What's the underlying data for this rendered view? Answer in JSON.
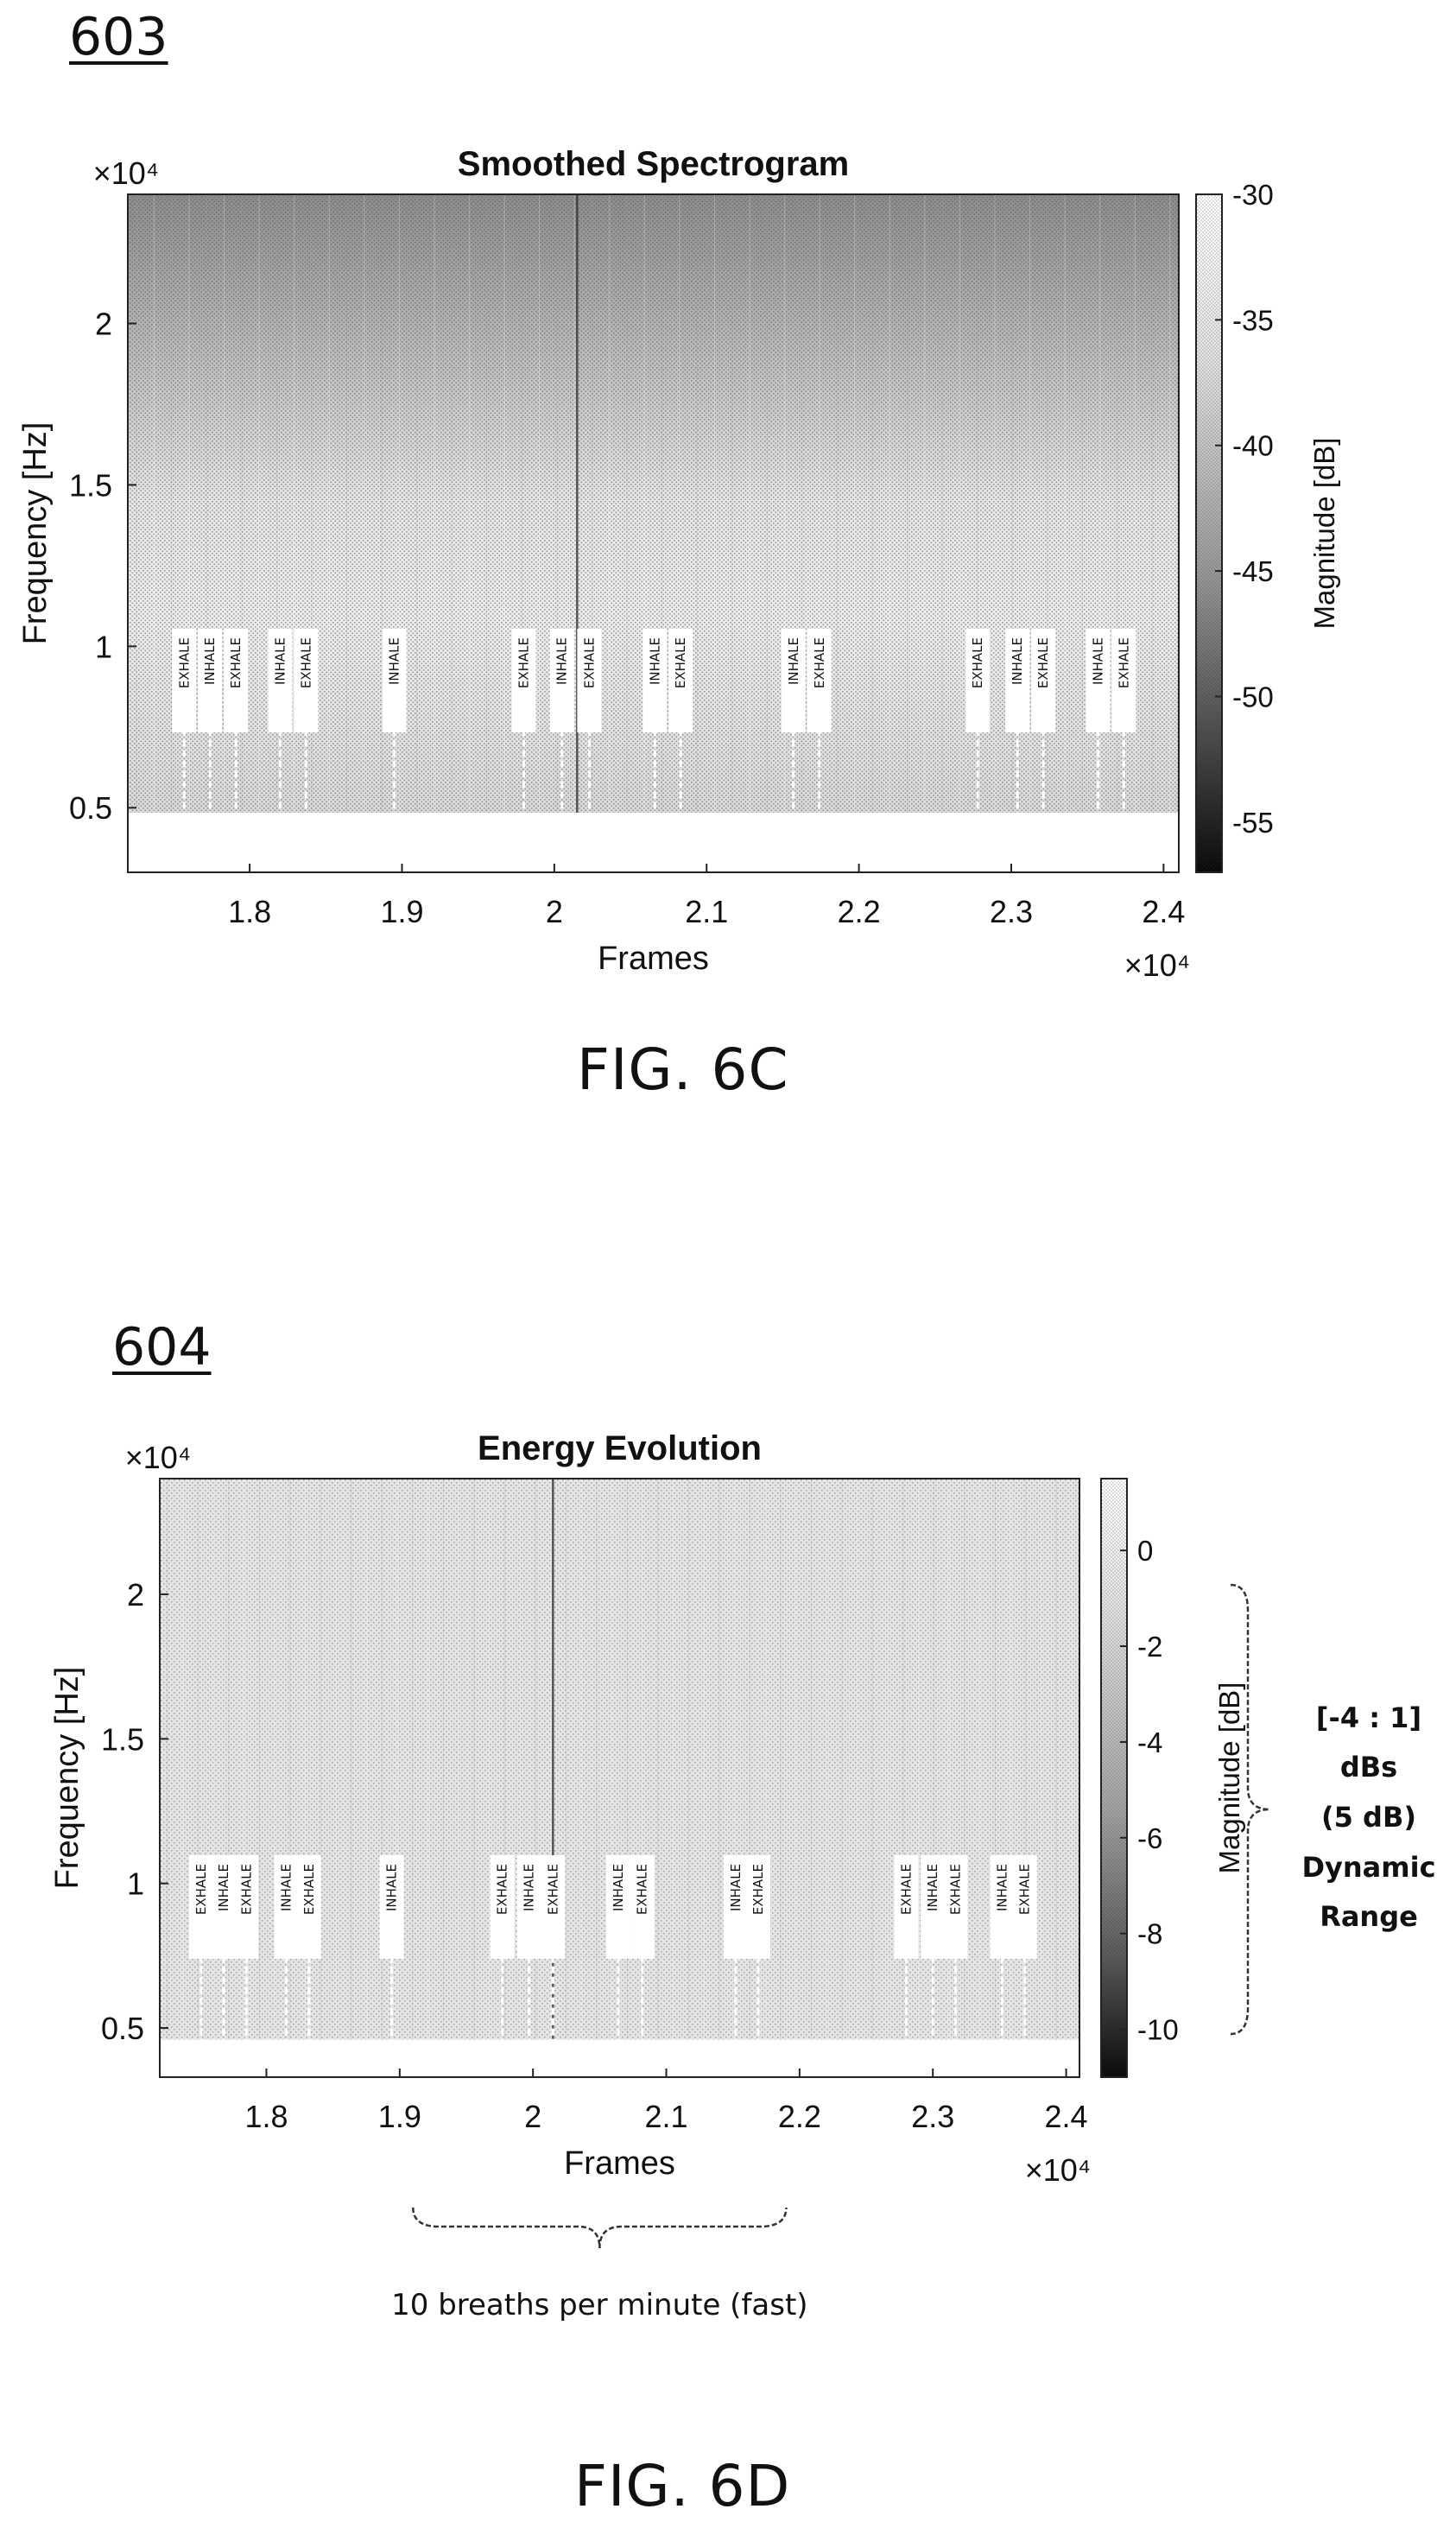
{
  "chart_data": [
    {
      "ref": "603",
      "type": "heatmap",
      "title": "Smoothed Spectrogram",
      "xlabel": "Frames",
      "ylabel": "Frequency [Hz]",
      "x_exponent": "×10⁴",
      "y_exponent": "×10⁴",
      "xlim": [
        1.72,
        2.41
      ],
      "ylim": [
        0.3,
        2.4
      ],
      "x_ticks": [
        1.8,
        1.9,
        2,
        2.1,
        2.2,
        2.3,
        2.4
      ],
      "y_ticks": [
        0.5,
        1,
        1.5,
        2
      ],
      "colorbar": {
        "label": "Magnitude [dB]",
        "range": [
          -57,
          -30
        ],
        "ticks": [
          -30,
          -35,
          -40,
          -45,
          -50,
          -55
        ]
      },
      "markers": [
        {
          "x": 1.757,
          "label": "EXHALE"
        },
        {
          "x": 1.774,
          "label": "INHALE"
        },
        {
          "x": 1.791,
          "label": "EXHALE"
        },
        {
          "x": 1.82,
          "label": "INHALE"
        },
        {
          "x": 1.837,
          "label": "EXHALE"
        },
        {
          "x": 1.895,
          "label": "INHALE"
        },
        {
          "x": 1.98,
          "label": "EXHALE"
        },
        {
          "x": 2.005,
          "label": "INHALE"
        },
        {
          "x": 2.023,
          "label": "EXHALE"
        },
        {
          "x": 2.066,
          "label": "INHALE"
        },
        {
          "x": 2.083,
          "label": "EXHALE"
        },
        {
          "x": 2.157,
          "label": "INHALE"
        },
        {
          "x": 2.174,
          "label": "EXHALE"
        },
        {
          "x": 2.278,
          "label": "EXHALE"
        },
        {
          "x": 2.304,
          "label": "INHALE"
        },
        {
          "x": 2.321,
          "label": "EXHALE"
        },
        {
          "x": 2.357,
          "label": "INHALE"
        },
        {
          "x": 2.374,
          "label": "EXHALE"
        }
      ],
      "caption": "FIG. 6C"
    },
    {
      "ref": "604",
      "type": "heatmap",
      "title": "Energy Evolution",
      "xlabel": "Frames",
      "ylabel": "Frequency [Hz]",
      "x_exponent": "×10⁴",
      "y_exponent": "×10⁴",
      "xlim": [
        1.72,
        2.41
      ],
      "ylim": [
        0.33,
        2.4
      ],
      "x_ticks": [
        1.8,
        1.9,
        2,
        2.1,
        2.2,
        2.3,
        2.4
      ],
      "y_ticks": [
        0.5,
        1,
        1.5,
        2
      ],
      "colorbar": {
        "label": "Magnitude [dB]",
        "range": [
          -11,
          1.5
        ],
        "ticks": [
          0,
          -2,
          -4,
          -6,
          -8,
          -10
        ]
      },
      "markers": [
        {
          "x": 1.751,
          "label": "EXHALE"
        },
        {
          "x": 1.768,
          "label": "INHALE"
        },
        {
          "x": 1.785,
          "label": "EXHALE"
        },
        {
          "x": 1.815,
          "label": "INHALE"
        },
        {
          "x": 1.832,
          "label": "EXHALE"
        },
        {
          "x": 1.894,
          "label": "INHALE"
        },
        {
          "x": 1.977,
          "label": "EXHALE"
        },
        {
          "x": 1.997,
          "label": "INHALE"
        },
        {
          "x": 2.015,
          "label": "EXHALE"
        },
        {
          "x": 2.064,
          "label": "INHALE"
        },
        {
          "x": 2.082,
          "label": "EXHALE"
        },
        {
          "x": 2.152,
          "label": "INHALE"
        },
        {
          "x": 2.169,
          "label": "EXHALE"
        },
        {
          "x": 2.28,
          "label": "EXHALE"
        },
        {
          "x": 2.3,
          "label": "INHALE"
        },
        {
          "x": 2.317,
          "label": "EXHALE"
        },
        {
          "x": 2.352,
          "label": "INHALE"
        },
        {
          "x": 2.369,
          "label": "EXHALE"
        }
      ],
      "bracket_note": "10 breaths per minute (fast)",
      "dynamic_range_note": [
        "[-4 : 1]",
        "dBs",
        "(5 dB)",
        "Dynamic",
        "Range"
      ],
      "caption": "FIG. 6D"
    }
  ]
}
